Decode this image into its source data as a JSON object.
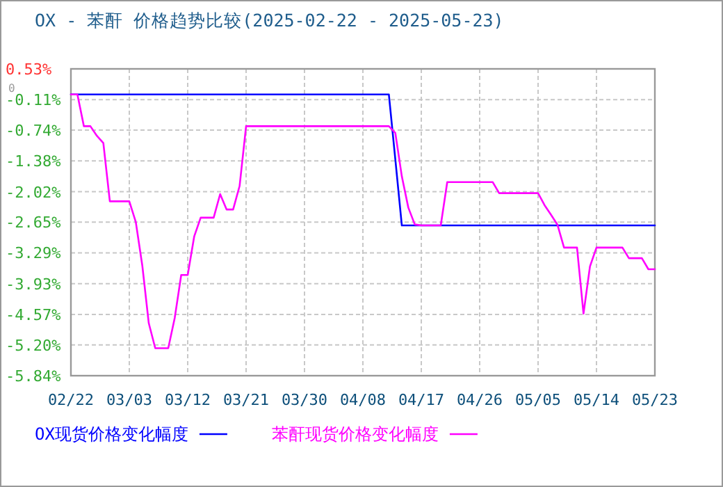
{
  "chart_data": {
    "type": "line",
    "title": "OX - 苯酐 价格趋势比较(2025-02-22 - 2025-05-23)",
    "xlim": [
      "2025-02-22",
      "2025-05-23"
    ],
    "xticks": [
      {
        "value": "2025-02-22",
        "label": "02/22"
      },
      {
        "value": "2025-03-03",
        "label": "03/03"
      },
      {
        "value": "2025-03-12",
        "label": "03/12"
      },
      {
        "value": "2025-03-21",
        "label": "03/21"
      },
      {
        "value": "2025-03-30",
        "label": "03/30"
      },
      {
        "value": "2025-04-08",
        "label": "04/08"
      },
      {
        "value": "2025-04-17",
        "label": "04/17"
      },
      {
        "value": "2025-04-26",
        "label": "04/26"
      },
      {
        "value": "2025-05-05",
        "label": "05/05"
      },
      {
        "value": "2025-05-14",
        "label": "05/14"
      },
      {
        "value": "2025-05-23",
        "label": "05/23"
      }
    ],
    "ylim": [
      -5.84,
      0.53
    ],
    "yticks": [
      {
        "value": 0.53,
        "label": "0.53%"
      },
      {
        "value": 0,
        "label": "0"
      },
      {
        "value": -0.11,
        "label": "-0.11%"
      },
      {
        "value": -0.74,
        "label": "-0.74%"
      },
      {
        "value": -1.38,
        "label": "-1.38%"
      },
      {
        "value": -2.02,
        "label": "-2.02%"
      },
      {
        "value": -2.65,
        "label": "-2.65%"
      },
      {
        "value": -3.29,
        "label": "-3.29%"
      },
      {
        "value": -3.93,
        "label": "-3.93%"
      },
      {
        "value": -4.57,
        "label": "-4.57%"
      },
      {
        "value": -5.2,
        "label": "-5.20%"
      },
      {
        "value": -5.84,
        "label": "-5.84%"
      }
    ],
    "grid": true,
    "legend": "bottom",
    "line_style": "solid",
    "marker": "none",
    "series": [
      {
        "name": "OX现货价格变化幅度",
        "color": "#0000ff",
        "x": [
          "2025-02-22",
          "2025-04-12",
          "2025-04-13",
          "2025-04-14",
          "2025-05-23"
        ],
        "values": [
          0,
          0,
          -1.35,
          -2.72,
          -2.72
        ]
      },
      {
        "name": "苯酐现货价格变化幅度",
        "color": "#ff00ff",
        "x": [
          "2025-02-22",
          "2025-02-23",
          "2025-02-24",
          "2025-02-25",
          "2025-02-26",
          "2025-02-27",
          "2025-02-28",
          "2025-03-03",
          "2025-03-04",
          "2025-03-05",
          "2025-03-06",
          "2025-03-07",
          "2025-03-09",
          "2025-03-10",
          "2025-03-11",
          "2025-03-12",
          "2025-03-13",
          "2025-03-14",
          "2025-03-16",
          "2025-03-17",
          "2025-03-18",
          "2025-03-19",
          "2025-03-20",
          "2025-03-21",
          "2025-04-12",
          "2025-04-13",
          "2025-04-14",
          "2025-04-15",
          "2025-04-16",
          "2025-04-17",
          "2025-04-20",
          "2025-04-21",
          "2025-04-28",
          "2025-04-29",
          "2025-05-05",
          "2025-05-06",
          "2025-05-07",
          "2025-05-08",
          "2025-05-09",
          "2025-05-11",
          "2025-05-12",
          "2025-05-13",
          "2025-05-14",
          "2025-05-18",
          "2025-05-19",
          "2025-05-21",
          "2025-05-22",
          "2025-05-23"
        ],
        "values": [
          0,
          0,
          -0.66,
          -0.66,
          -0.86,
          -1.01,
          -2.22,
          -2.22,
          -2.65,
          -3.55,
          -4.75,
          -5.27,
          -5.27,
          -4.64,
          -3.75,
          -3.75,
          -2.95,
          -2.56,
          -2.56,
          -2.07,
          -2.39,
          -2.39,
          -1.9,
          -0.66,
          -0.66,
          -0.8,
          -1.7,
          -2.35,
          -2.7,
          -2.72,
          -2.72,
          -1.82,
          -1.82,
          -2.05,
          -2.05,
          -2.3,
          -2.5,
          -2.71,
          -3.18,
          -3.18,
          -4.55,
          -3.57,
          -3.18,
          -3.18,
          -3.4,
          -3.4,
          -3.63,
          -3.63
        ]
      }
    ]
  }
}
